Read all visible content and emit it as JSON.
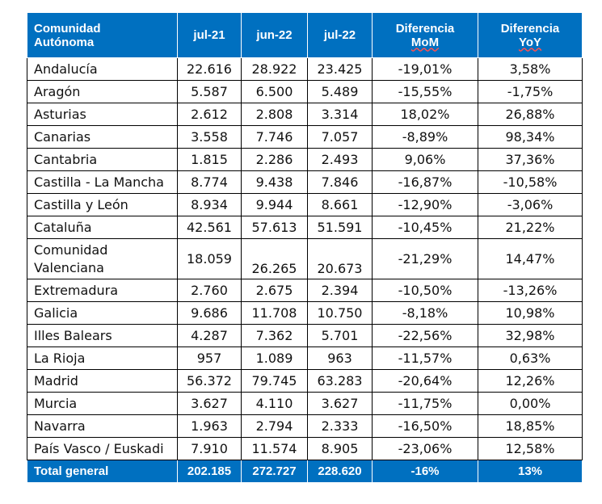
{
  "table": {
    "headers": {
      "region": [
        "Comunidad",
        "Autónoma"
      ],
      "jul21": "jul-21",
      "jun22": "jun-22",
      "jul22": "jul-22",
      "mom": [
        "Diferencia",
        "MoM"
      ],
      "yoy": [
        "Diferencia",
        "YoY"
      ]
    },
    "rows": [
      {
        "region": "Andalucía",
        "jul21": "22.616",
        "jun22": "28.922",
        "jul22": "23.425",
        "mom": "-19,01%",
        "yoy": "3,58%"
      },
      {
        "region": "Aragón",
        "jul21": "5.587",
        "jun22": "6.500",
        "jul22": "5.489",
        "mom": "-15,55%",
        "yoy": "-1,75%"
      },
      {
        "region": "Asturias",
        "jul21": "2.612",
        "jun22": "2.808",
        "jul22": "3.314",
        "mom": "18,02%",
        "yoy": "26,88%"
      },
      {
        "region": "Canarias",
        "jul21": "3.558",
        "jun22": "7.746",
        "jul22": "7.057",
        "mom": "-8,89%",
        "yoy": "98,34%"
      },
      {
        "region": "Cantabria",
        "jul21": "1.815",
        "jun22": "2.286",
        "jul22": "2.493",
        "mom": "9,06%",
        "yoy": "37,36%"
      },
      {
        "region": "Castilla - La Mancha",
        "jul21": "8.774",
        "jun22": "9.438",
        "jul22": "7.846",
        "mom": "-16,87%",
        "yoy": "-10,58%"
      },
      {
        "region": "Castilla y León",
        "jul21": "8.934",
        "jun22": "9.944",
        "jul22": "8.661",
        "mom": "-12,90%",
        "yoy": "-3,06%"
      },
      {
        "region": "Cataluña",
        "jul21": "42.561",
        "jun22": "57.613",
        "jul22": "51.591",
        "mom": "-10,45%",
        "yoy": "21,22%"
      },
      {
        "region": "Comunidad Valenciana",
        "jul21": "18.059",
        "jun22": "26.265",
        "jul22": "20.673",
        "mom": "-21,29%",
        "yoy": "14,47%"
      },
      {
        "region": "Extremadura",
        "jul21": "2.760",
        "jun22": "2.675",
        "jul22": "2.394",
        "mom": "-10,50%",
        "yoy": "-13,26%"
      },
      {
        "region": "Galicia",
        "jul21": "9.686",
        "jun22": "11.708",
        "jul22": "10.750",
        "mom": "-8,18%",
        "yoy": "10,98%"
      },
      {
        "region": "Illes Balears",
        "jul21": "4.287",
        "jun22": "7.362",
        "jul22": "5.701",
        "mom": "-22,56%",
        "yoy": "32,98%"
      },
      {
        "region": "La Rioja",
        "jul21": "957",
        "jun22": "1.089",
        "jul22": "963",
        "mom": "-11,57%",
        "yoy": "0,63%"
      },
      {
        "region": "Madrid",
        "jul21": "56.372",
        "jun22": "79.745",
        "jul22": "63.283",
        "mom": "-20,64%",
        "yoy": "12,26%"
      },
      {
        "region": "Murcia",
        "jul21": "3.627",
        "jun22": "4.110",
        "jul22": "3.627",
        "mom": "-11,75%",
        "yoy": "0,00%"
      },
      {
        "region": "Navarra",
        "jul21": "1.963",
        "jun22": "2.794",
        "jul22": "2.333",
        "mom": "-16,50%",
        "yoy": "18,85%"
      },
      {
        "region": "País Vasco / Euskadi",
        "jul21": "7.910",
        "jun22": "11.574",
        "jul22": "8.905",
        "mom": "-23,06%",
        "yoy": "12,58%"
      }
    ],
    "total": {
      "region": "Total general",
      "jul21": "202.185",
      "jun22": "272.727",
      "jul22": "228.620",
      "mom": "-16%",
      "yoy": "13%"
    },
    "colors": {
      "header_bg": "#0070c0",
      "header_text": "#ffffff",
      "border": "#000000"
    }
  }
}
